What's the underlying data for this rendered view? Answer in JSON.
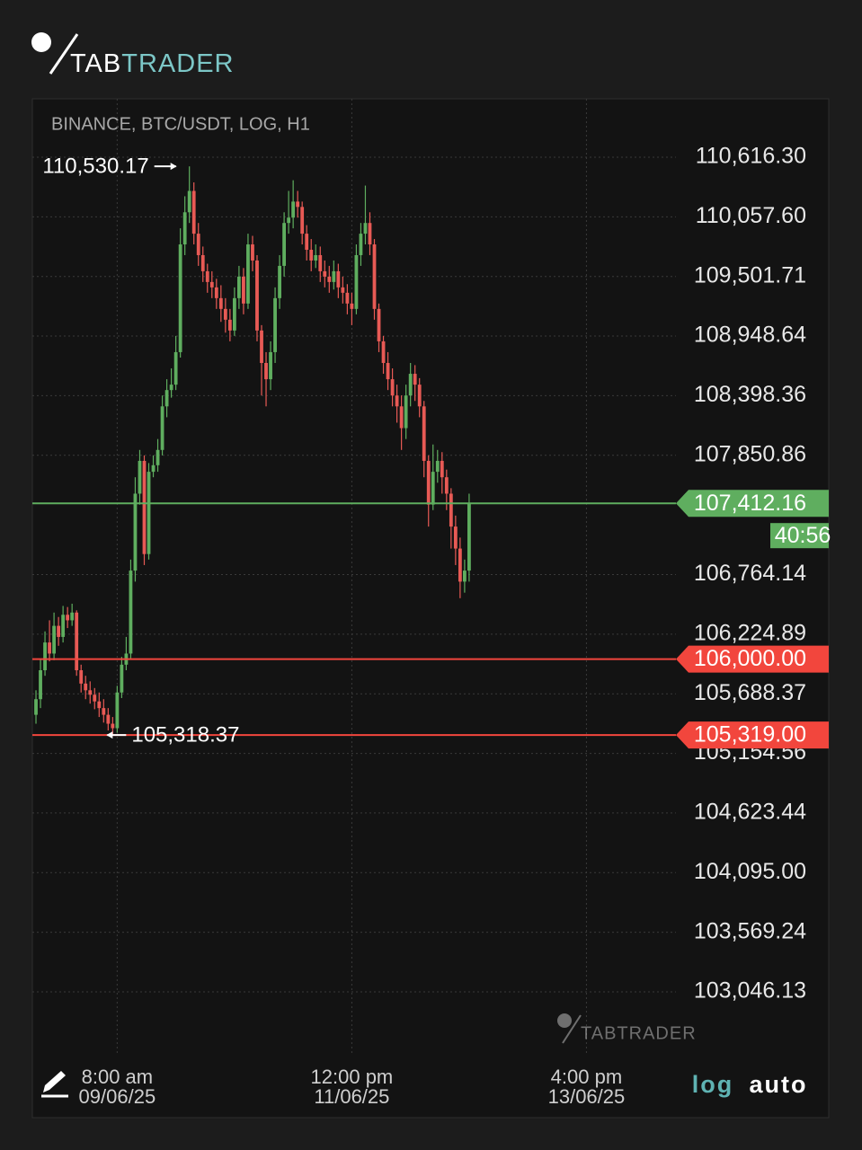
{
  "header": {
    "logo_first": "TAB",
    "logo_second": "TRADER"
  },
  "chart_data": {
    "type": "candlestick",
    "title": "BINANCE, BTC/USDT, LOG, H1",
    "log_scale": true,
    "grid": true,
    "up_color": "#5fae5f",
    "down_color": "#e85a55",
    "open": [
      105500,
      105640,
      105900,
      106150,
      106050,
      106300,
      106200,
      106400,
      106350,
      106420,
      105900,
      105780,
      105720,
      105680,
      105620,
      105560,
      105500,
      105420,
      105380,
      105700,
      105950,
      106050,
      106800,
      107500,
      107800,
      106950,
      107700,
      107760,
      107900,
      108300,
      108450,
      108500,
      108800,
      109800,
      110100,
      110300,
      109900,
      109700,
      109550,
      109450,
      109400,
      109300,
      109200,
      109100,
      109000,
      109300,
      109500,
      109250,
      109800,
      109650,
      109000,
      108700,
      108550,
      108800,
      109300,
      109600,
      110000,
      110050,
      110200,
      110150,
      109900,
      109750,
      109650,
      109700,
      109550,
      109500,
      109450,
      109550,
      109400,
      109350,
      109250,
      109200,
      109700,
      109900,
      110000,
      109800,
      109200,
      108900,
      108700,
      108550,
      108400,
      108300,
      108100,
      108400,
      108600,
      108500,
      108300,
      107800,
      107400,
      107700,
      107800,
      107650,
      107500,
      107200,
      107000,
      106700,
      106800
    ],
    "high": [
      105720,
      106000,
      106250,
      106350,
      106420,
      106380,
      106480,
      106470,
      106500,
      106440,
      105950,
      105850,
      105800,
      105740,
      105700,
      105640,
      105560,
      105480,
      105760,
      106020,
      106200,
      106900,
      107650,
      107900,
      107850,
      107780,
      107850,
      108000,
      108400,
      108550,
      108650,
      108950,
      109950,
      110250,
      110530.17,
      110380,
      110000,
      109780,
      109620,
      109550,
      109480,
      109420,
      109300,
      109200,
      109400,
      109600,
      109580,
      109900,
      109880,
      109700,
      109050,
      108800,
      108900,
      109400,
      109700,
      110100,
      110300,
      110400,
      110300,
      110200,
      109980,
      109850,
      109800,
      109780,
      109650,
      109600,
      109650,
      109620,
      109500,
      109430,
      109350,
      109800,
      110000,
      110350,
      110100,
      109850,
      109250,
      108950,
      108800,
      108650,
      108500,
      108400,
      108500,
      108700,
      108680,
      108560,
      108350,
      107850,
      107950,
      107900,
      107880,
      107720,
      107550,
      107300,
      107100,
      106900,
      107500
    ],
    "low": [
      105420,
      105560,
      105850,
      105980,
      105990,
      106120,
      106150,
      106280,
      106300,
      105850,
      105700,
      105640,
      105600,
      105550,
      105480,
      105430,
      105360,
      105318.37,
      105340,
      105650,
      105900,
      106000,
      106700,
      107400,
      106850,
      106900,
      107650,
      107700,
      107850,
      108200,
      108380,
      108450,
      108750,
      109700,
      110000,
      109800,
      109600,
      109450,
      109350,
      109300,
      109200,
      109080,
      108980,
      108900,
      108950,
      109200,
      109150,
      109200,
      109550,
      108900,
      108400,
      108300,
      108450,
      108700,
      109200,
      109500,
      109900,
      109950,
      110050,
      109800,
      109650,
      109550,
      109580,
      109450,
      109400,
      109350,
      109380,
      109300,
      109250,
      109150,
      109050,
      109150,
      109600,
      109800,
      109700,
      109100,
      108800,
      108600,
      108450,
      108300,
      108150,
      107900,
      108000,
      108300,
      108350,
      108200,
      107650,
      107200,
      107350,
      107600,
      107500,
      107350,
      107000,
      106850,
      106550,
      106600,
      106700
    ],
    "close": [
      105640,
      105900,
      106150,
      106050,
      106300,
      106200,
      106400,
      106350,
      106420,
      105900,
      105780,
      105720,
      105680,
      105620,
      105560,
      105500,
      105420,
      105380,
      105700,
      105950,
      106050,
      106800,
      107500,
      107800,
      106950,
      107700,
      107760,
      107900,
      108300,
      108450,
      108500,
      108800,
      109800,
      110100,
      110300,
      109900,
      109700,
      109550,
      109450,
      109400,
      109300,
      109200,
      109100,
      109000,
      109300,
      109500,
      109250,
      109800,
      109650,
      109000,
      108700,
      108550,
      108800,
      109300,
      109600,
      110000,
      110050,
      110200,
      110150,
      109900,
      109750,
      109650,
      109700,
      109550,
      109500,
      109450,
      109550,
      109400,
      109350,
      109250,
      109200,
      109700,
      109900,
      110000,
      109800,
      109200,
      108900,
      108700,
      108550,
      108400,
      108300,
      108100,
      108400,
      108600,
      108500,
      108300,
      107800,
      107400,
      107700,
      107800,
      107650,
      107500,
      107200,
      107000,
      106700,
      106800,
      107412.16
    ],
    "ylim": [
      102513,
      111166
    ],
    "yticks": [
      {
        "value": 110616.3,
        "label": "110,616.30"
      },
      {
        "value": 110057.6,
        "label": "110,057.60"
      },
      {
        "value": 109501.71,
        "label": "109,501.71"
      },
      {
        "value": 108948.64,
        "label": "108,948.64"
      },
      {
        "value": 108398.36,
        "label": "108,398.36"
      },
      {
        "value": 107850.86,
        "label": "107,850.86"
      },
      {
        "value": 106764.14,
        "label": "106,764.14"
      },
      {
        "value": 106224.89,
        "label": "106,224.89"
      },
      {
        "value": 105688.37,
        "label": "105,688.37"
      },
      {
        "value": 105154.56,
        "label": "105,154.56"
      },
      {
        "value": 104623.44,
        "label": "104,623.44"
      },
      {
        "value": 104095.0,
        "label": "104,095.00"
      },
      {
        "value": 103569.24,
        "label": "103,569.24"
      },
      {
        "value": 103046.13,
        "label": "103,046.13"
      }
    ],
    "xlim": [
      -0.8,
      175.7
    ],
    "xticks": [
      {
        "value": 18,
        "label": "8:00 am"
      },
      {
        "value": 70,
        "label": "12:00 pm"
      },
      {
        "value": 122,
        "label": "4:00 pm"
      }
    ],
    "xtick_dates": [
      "09/06/25",
      "11/06/25",
      "13/06/25"
    ],
    "high_marker": {
      "value": 110530.17,
      "label": "110,530.17"
    },
    "low_marker": {
      "value": 105318.37,
      "label": "105,318.37"
    },
    "price_lines": [
      {
        "value": 107412.16,
        "label": "107,412.16",
        "color": "#5fae5f"
      },
      {
        "value": 106000.0,
        "label": "106,000.00",
        "color": "#f2463d"
      },
      {
        "value": 105319.0,
        "label": "105,319.00",
        "color": "#f2463d"
      }
    ],
    "countdown": "40:56"
  },
  "controls": {
    "log": "log",
    "auto": "auto"
  },
  "watermark": "TABTRADER"
}
